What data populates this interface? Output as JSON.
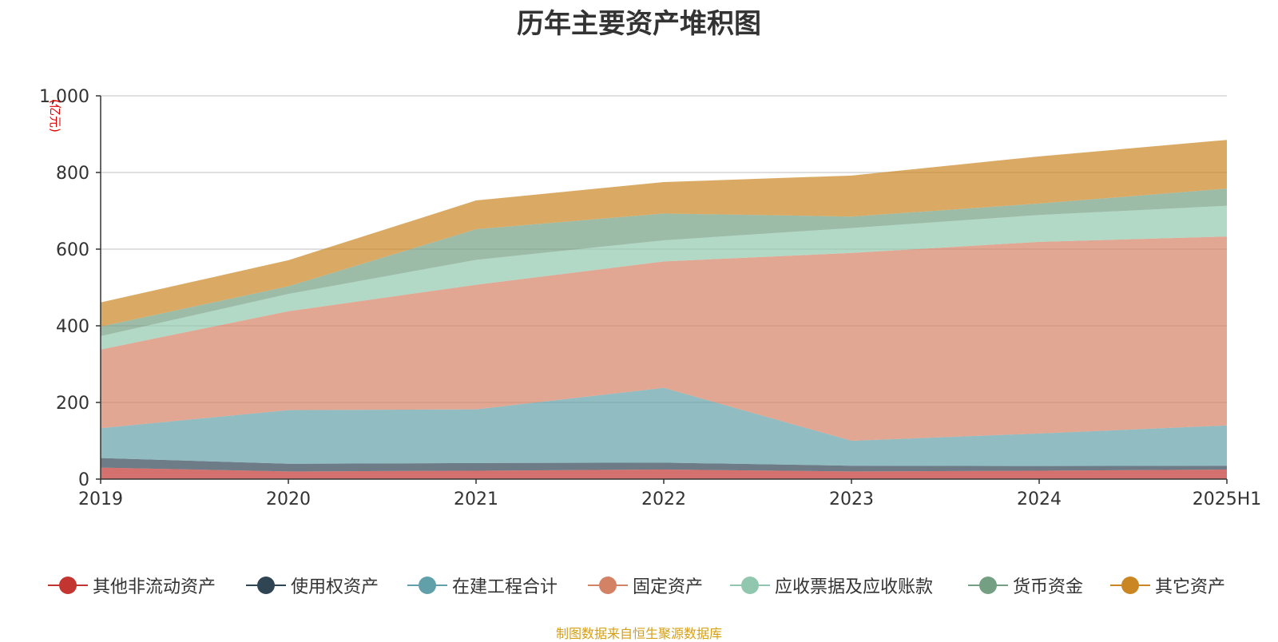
{
  "colors": {
    "axis": "#333333",
    "grid": "#cccccc",
    "unit": "#e00000",
    "source": "#d4a017"
  },
  "chart_data": {
    "type": "area",
    "stacked": true,
    "title": "历年主要资产堆积图",
    "unit_label": "(亿元)",
    "xlabel": "",
    "ylabel": "",
    "x": [
      "2019",
      "2020",
      "2021",
      "2022",
      "2023",
      "2024",
      "2025H1"
    ],
    "ylim": [
      0,
      1000
    ],
    "yticks": [
      0,
      200,
      400,
      600,
      800,
      1000
    ],
    "ytick_labels": [
      "0",
      "200",
      "400",
      "600",
      "800",
      "1,000"
    ],
    "grid": true,
    "legend_position": "bottom",
    "series": [
      {
        "name": "其他非流动资产",
        "color": "#c23531",
        "values": [
          30,
          20,
          22,
          25,
          20,
          22,
          25
        ]
      },
      {
        "name": "使用权资产",
        "color": "#2f4554",
        "values": [
          25,
          20,
          20,
          18,
          15,
          12,
          10
        ]
      },
      {
        "name": "在建工程合计",
        "color": "#61a0a8",
        "values": [
          78,
          140,
          140,
          195,
          65,
          85,
          105
        ]
      },
      {
        "name": "固定资产",
        "color": "#d48265",
        "values": [
          205,
          258,
          325,
          330,
          490,
          500,
          493
        ]
      },
      {
        "name": "应收票据及应收账款",
        "color": "#91c7ae",
        "values": [
          35,
          45,
          65,
          55,
          65,
          70,
          80
        ]
      },
      {
        "name": "货币资金",
        "color": "#749f83",
        "values": [
          25,
          20,
          80,
          70,
          30,
          30,
          45
        ]
      },
      {
        "name": "其它资产",
        "color": "#ca8622",
        "values": [
          63,
          68,
          75,
          82,
          107,
          123,
          127
        ]
      }
    ]
  },
  "source": "制图数据来自恒生聚源数据库"
}
